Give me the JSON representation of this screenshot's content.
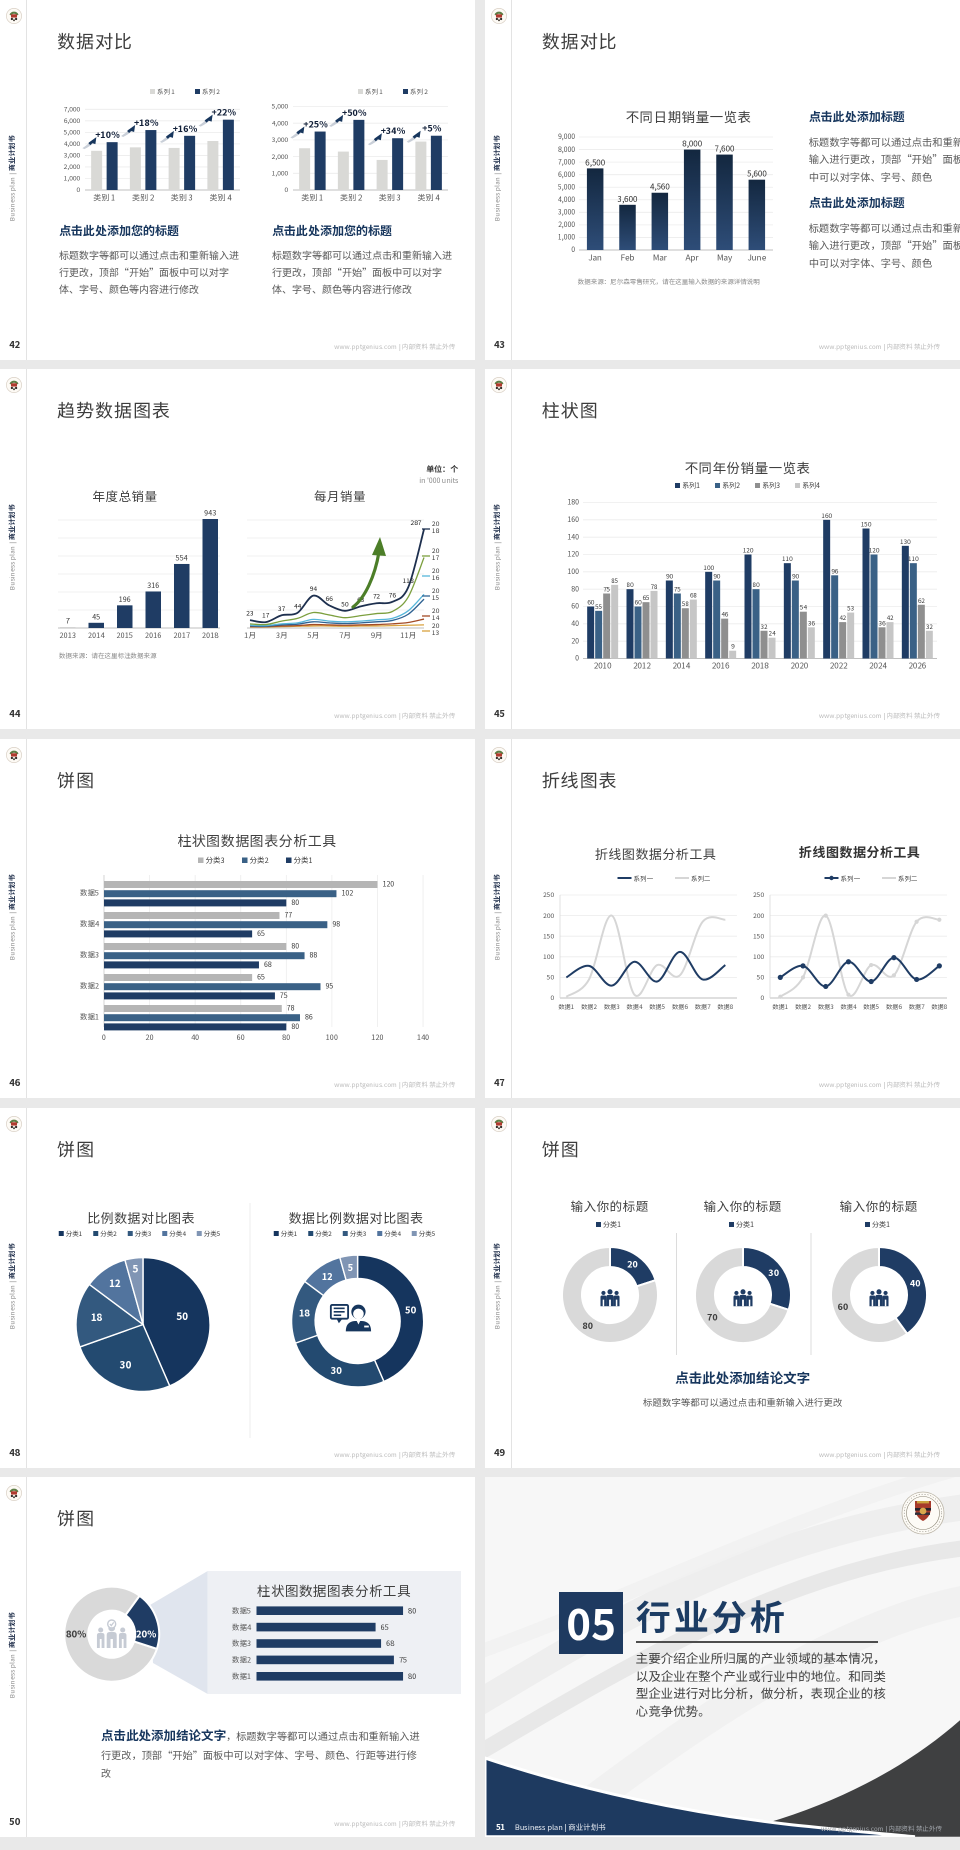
{
  "app": {
    "footer_site": "www.pptgenius.com | 内部资料 禁止外传",
    "brand_en": "Business plan |",
    "brand_zh": "商业计划书",
    "accent_navy": "#1f3c64",
    "light_gray_bar": "#d9d9d6"
  },
  "slides": [
    {
      "page": "42",
      "title": "数据对比",
      "blocks": [
        {
          "heading": "点击此处添加您的标题",
          "body": "标题数字等都可以通过点击和重新输入进行更改，顶部“开始”面板中可以对字体、字号、颜色等内容进行修改"
        },
        {
          "heading": "点击此处添加您的标题",
          "body": "标题数字等都可以通过点击和重新输入进行更改，顶部“开始”面板中可以对字体、字号、颜色等内容进行修改"
        }
      ],
      "chart_data": [
        {
          "type": "bar",
          "categories": [
            "类别 1",
            "类别 2",
            "类别 3",
            "类别 4"
          ],
          "series": [
            {
              "name": "系列 1",
              "color": "#d9d9d6",
              "values": [
                3400,
                3700,
                3650,
                4250
              ]
            },
            {
              "name": "系列 2",
              "color": "#1f3c64",
              "values": [
                4150,
                5200,
                4700,
                6100
              ]
            }
          ],
          "growth_labels": [
            "+10%",
            "+18%",
            "+16%",
            "+22%"
          ],
          "ylim": [
            0,
            7000
          ],
          "ytick": 1000,
          "legend_position": "top-right",
          "grid": true
        },
        {
          "type": "bar",
          "categories": [
            "类别 1",
            "类别 2",
            "类别 3",
            "类别 4"
          ],
          "series": [
            {
              "name": "系列 1",
              "color": "#d9d9d6",
              "values": [
                2500,
                2300,
                1800,
                2900
              ]
            },
            {
              "name": "系列 2",
              "color": "#1f3c64",
              "values": [
                3500,
                4200,
                3100,
                3250
              ]
            }
          ],
          "growth_labels": [
            "+25%",
            "+50%",
            "+34%",
            "+5%"
          ],
          "ylim": [
            0,
            5000
          ],
          "ytick": 1000,
          "legend_position": "top-right",
          "grid": true
        }
      ]
    },
    {
      "page": "43",
      "title": "数据对比",
      "source_note": "数据来源：尼尔森零售研究，请在这里输入数据的来源详情说明",
      "blocks": [
        {
          "heading": "点击此处添加标题",
          "body": "标题数字等都可以通过点击和重新输入进行更改，顶部“开始”面板中可以对字体、字号、颜色"
        },
        {
          "heading": "点击此处添加标题",
          "body": "标题数字等都可以通过点击和重新输入进行更改，顶部“开始”面板中可以对字体、字号、颜色"
        }
      ],
      "chart_data": [
        {
          "type": "bar",
          "title": "不同日期销量一览表",
          "categories": [
            "Jan",
            "Feb",
            "Mar",
            "Apr",
            "May",
            "June"
          ],
          "values": [
            6500,
            3600,
            4560,
            8000,
            7600,
            5600
          ],
          "value_labels": [
            "6,500",
            "3,600",
            "4,560",
            "8,000",
            "7,600",
            "5,600"
          ],
          "ylim": [
            0,
            9000
          ],
          "ytick": 1000,
          "grid": true,
          "bar_gradient": [
            "#13273f",
            "#2e4d78"
          ]
        }
      ]
    },
    {
      "page": "44",
      "title": "趋势数据图表",
      "unit_label": "单位：个",
      "unit_sub": "in '000 units",
      "source_note": "数据来源：请在这里标注数据来源",
      "chart_data": [
        {
          "type": "bar",
          "title": "年度总销量",
          "categories": [
            "2013",
            "2014",
            "2015",
            "2016",
            "2017",
            "2018"
          ],
          "values": [
            7,
            45,
            196,
            316,
            554,
            943
          ],
          "colors": [
            "#c9c9c9",
            "#1f3c64",
            "#1f3c64",
            "#1f3c64",
            "#1f3c64",
            "#1f3c64"
          ],
          "ylim": [
            0,
            1000
          ],
          "grid": true
        },
        {
          "type": "line",
          "title": "每月销量",
          "x_labels": [
            "1月",
            "3月",
            "5月",
            "7月",
            "9月",
            "11月"
          ],
          "series": [
            {
              "name": "2018",
              "color": "#1d2f4e",
              "values": [
                23,
                17,
                37,
                44,
                94,
                66,
                50,
                63,
                72,
                76,
                118,
                287
              ],
              "labeled": true
            },
            {
              "name": "2017",
              "color": "#7c9f3e",
              "values": [
                12,
                10,
                20,
                28,
                45,
                38,
                30,
                36,
                42,
                48,
                90,
                205
              ]
            },
            {
              "name": "2016",
              "color": "#56b6da",
              "values": [
                8,
                7,
                12,
                15,
                25,
                20,
                18,
                20,
                24,
                28,
                50,
                98
              ]
            },
            {
              "name": "2015",
              "color": "#2f6292",
              "values": [
                6,
                5,
                9,
                11,
                18,
                15,
                13,
                15,
                18,
                22,
                40,
                84
              ]
            },
            {
              "name": "2014",
              "color": "#a34b26",
              "values": [
                4,
                4,
                6,
                7,
                10,
                9,
                8,
                9,
                10,
                12,
                16,
                26
              ]
            },
            {
              "name": "2013",
              "color": "#d9a23f",
              "values": [
                3,
                3,
                4,
                5,
                6,
                6,
                5,
                6,
                6,
                7,
                8,
                9
              ]
            }
          ],
          "ylim": [
            0,
            330
          ],
          "annotation": "green-up-arrow"
        }
      ]
    },
    {
      "page": "45",
      "title": "柱状图",
      "chart_data": [
        {
          "type": "bar",
          "title": "不同年份销量一览表",
          "categories": [
            "2010",
            "2012",
            "2014",
            "2016",
            "2018",
            "2020",
            "2022",
            "2024",
            "2026"
          ],
          "series": [
            {
              "name": "系列1",
              "color": "#1f3c64",
              "values": [
                60,
                80,
                90,
                100,
                120,
                110,
                160,
                150,
                130
              ]
            },
            {
              "name": "系列2",
              "color": "#3a6186",
              "values": [
                55,
                60,
                75,
                90,
                80,
                90,
                96,
                120,
                110
              ]
            },
            {
              "name": "系列3",
              "color": "#8f8f8f",
              "values": [
                75,
                65,
                58,
                46,
                32,
                54,
                42,
                36,
                62
              ]
            },
            {
              "name": "系列4",
              "color": "#c6c6c6",
              "values": [
                85,
                78,
                68,
                9,
                24,
                36,
                53,
                42,
                32
              ]
            }
          ],
          "ylim": [
            0,
            180
          ],
          "ytick": 20,
          "grid": true,
          "legend_position": "top-center"
        }
      ]
    },
    {
      "page": "46",
      "title": "饼图",
      "chart_data": [
        {
          "type": "hbar",
          "title": "柱状图数据图表分析工具",
          "categories": [
            "数据5",
            "数据4",
            "数据3",
            "数据2",
            "数据1"
          ],
          "series": [
            {
              "name": "分类3",
              "color": "#b5b5b5",
              "values": [
                120,
                77,
                80,
                65,
                78
              ]
            },
            {
              "name": "分类2",
              "color": "#3a6186",
              "values": [
                102,
                98,
                88,
                95,
                86
              ]
            },
            {
              "name": "分类1",
              "color": "#1f3c64",
              "values": [
                80,
                65,
                68,
                75,
                80
              ]
            }
          ],
          "xlim": [
            0,
            140
          ],
          "xtick": 20,
          "grid": true,
          "legend_position": "top-center"
        }
      ]
    },
    {
      "page": "47",
      "title": "折线图表",
      "chart_data": [
        {
          "type": "line",
          "title": "折线图数据分析工具",
          "categories": [
            "数据1",
            "数据2",
            "数据3",
            "数据4",
            "数据5",
            "数据6",
            "数据7",
            "数据8"
          ],
          "series": [
            {
              "name": "系列一",
              "color": "#1f3c64",
              "values": [
                50,
                78,
                30,
                88,
                40,
                112,
                45,
                80
              ]
            },
            {
              "name": "系列二",
              "color": "#d6d6d6",
              "values": [
                3,
                45,
                200,
                8,
                80,
                55,
                185,
                190
              ]
            }
          ],
          "ylim": [
            0,
            250
          ],
          "ytick": 50,
          "markers": false,
          "grid": true
        },
        {
          "type": "line",
          "title": "折线图数据分析工具",
          "categories": [
            "数据1",
            "数据2",
            "数据3",
            "数据4",
            "数据5",
            "数据6",
            "数据7",
            "数据8"
          ],
          "series": [
            {
              "name": "系列一",
              "color": "#1f3c64",
              "values": [
                50,
                78,
                28,
                88,
                40,
                98,
                45,
                78
              ]
            },
            {
              "name": "系列二",
              "color": "#d6d6d6",
              "values": [
                3,
                50,
                200,
                8,
                80,
                55,
                185,
                190
              ]
            }
          ],
          "ylim": [
            0,
            250
          ],
          "ytick": 50,
          "markers": true,
          "grid": true
        }
      ]
    },
    {
      "page": "48",
      "title": "饼图",
      "chart_data": [
        {
          "type": "pie",
          "title": "比例数据对比图表",
          "labels": [
            "分类1",
            "分类2",
            "分类3",
            "分类4",
            "分类5"
          ],
          "values": [
            50,
            30,
            18,
            12,
            5
          ],
          "slice_labels": [
            "50",
            "30",
            "18",
            "12",
            "5"
          ],
          "colors": [
            "#15355e",
            "#234a70",
            "#33597f",
            "#52749e",
            "#8095b4"
          ]
        },
        {
          "type": "donut",
          "title": "数据比例数据对比图表",
          "labels": [
            "分类1",
            "分类2",
            "分类3",
            "分类4",
            "分类5"
          ],
          "values": [
            50,
            30,
            18,
            12,
            5
          ],
          "slice_labels": [
            "50",
            "30",
            "18",
            "12",
            "5"
          ],
          "colors": [
            "#15355e",
            "#234a70",
            "#33597f",
            "#52749e",
            "#8095b4"
          ],
          "center_icon": "businessman-icon"
        }
      ]
    },
    {
      "page": "49",
      "title": "饼图",
      "conclusion_heading": "点击此处添加结论文字",
      "conclusion_body": "标题数字等都可以通过点击和重新输入进行更改",
      "chart_data": [
        {
          "type": "donut",
          "title": "输入你的标题",
          "legend": "分类1",
          "values": [
            20,
            80
          ],
          "slice_labels": [
            "20",
            "80"
          ],
          "colors": [
            "#1f3c64",
            "#d9d9d9"
          ],
          "center_icon": "people-icon"
        },
        {
          "type": "donut",
          "title": "输入你的标题",
          "legend": "分类1",
          "values": [
            30,
            70
          ],
          "slice_labels": [
            "30",
            "70"
          ],
          "colors": [
            "#1f3c64",
            "#d9d9d9"
          ],
          "center_icon": "people-icon"
        },
        {
          "type": "donut",
          "title": "输入你的标题",
          "legend": "分类1",
          "values": [
            40,
            60
          ],
          "slice_labels": [
            "40",
            "60"
          ],
          "colors": [
            "#1f3c64",
            "#d9d9d9"
          ],
          "center_icon": "people-icon"
        }
      ]
    },
    {
      "page": "50",
      "title": "饼图",
      "conclusion_heading": "点击此处添加结论文字",
      "conclusion_body": "，标题数字等都可以通过点击和重新输入进行更改，顶部“开始”面板中可以对字体、字号、颜色、行距等进行修改",
      "chart_data": [
        {
          "type": "donut",
          "values": [
            20,
            80
          ],
          "slice_labels": [
            "20%",
            "80%"
          ],
          "colors": [
            "#1f3c64",
            "#d9d9d9"
          ],
          "center_icon": "people-check-icon"
        },
        {
          "type": "hbar",
          "title": "柱状图数据图表分析工具",
          "categories": [
            "数据5",
            "数据4",
            "数据3",
            "数据2",
            "数据1"
          ],
          "values": [
            80,
            65,
            68,
            75,
            80
          ],
          "color": "#1f3c64",
          "xlim": [
            0,
            110
          ]
        }
      ]
    },
    {
      "page": "51",
      "section_number": "05",
      "section_title": "行业分析",
      "section_body": "主要介绍企业所归属的产业领域的基本情况，以及企业在整个产业或行业中的地位。和同类型企业进行对比分析，做分析，表现企业的核心竞争优势。",
      "footer_brand": "Business plan | 商业计划书"
    }
  ]
}
